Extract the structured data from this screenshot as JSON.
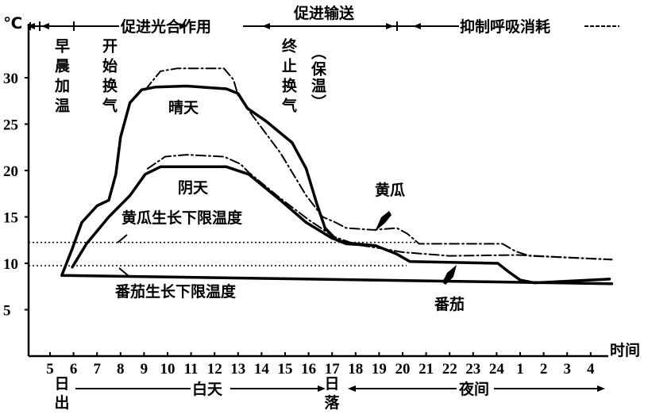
{
  "chart_data": {
    "type": "line",
    "yunit": "℃",
    "xlabel": "时间",
    "yticks": [
      5,
      10,
      15,
      20,
      25,
      30
    ],
    "ylim": [
      0,
      33
    ],
    "xticks": [
      "5",
      "6",
      "7",
      "8",
      "9",
      "10",
      "11",
      "12",
      "13",
      "14",
      "15",
      "16",
      "17",
      "18",
      "19",
      "20",
      "21",
      "22",
      "23",
      "24",
      "1",
      "2",
      "3",
      "4"
    ],
    "grid": false,
    "phases_top": [
      "促进光合作用",
      "促进输送",
      "抑制呼吸消耗"
    ],
    "phases_bottom": {
      "sunrise": "日出",
      "day": "白天",
      "sunset": "日落",
      "night": "夜间"
    },
    "annotations": {
      "morning_heating": "早晨加温",
      "start_ventilation": "开始换气",
      "stop_ventilation": "终止换气",
      "keep_warm": "（保温）",
      "sunny": "晴天",
      "cloudy": "阴天",
      "cucumber": "黄瓜",
      "tomato": "番茄"
    },
    "thresholds": [
      {
        "name": "黄瓜生长下限温度",
        "value": 12
      },
      {
        "name": "番茄生长下限温度",
        "value": 10
      }
    ],
    "series": [
      {
        "key": "tomato-sunny",
        "style": "solid",
        "points": [
          [
            4.9,
            7.8
          ],
          [
            5.5,
            8.7
          ],
          [
            5.95,
            11.6
          ],
          [
            6.35,
            14.4
          ],
          [
            7.0,
            16.2
          ],
          [
            7.5,
            16.8
          ],
          [
            7.8,
            19.6
          ],
          [
            8.0,
            23.6
          ],
          [
            8.4,
            27.3
          ],
          [
            8.9,
            28.7
          ],
          [
            9.5,
            29.0
          ],
          [
            10.8,
            29.1
          ],
          [
            12.5,
            28.8
          ],
          [
            13.0,
            28.3
          ],
          [
            13.4,
            26.7
          ],
          [
            14.2,
            25.3
          ],
          [
            15.3,
            23.0
          ],
          [
            15.9,
            20.2
          ],
          [
            16.35,
            16.4
          ],
          [
            16.7,
            13.8
          ],
          [
            17.2,
            12.5
          ],
          [
            17.6,
            12.1
          ],
          [
            18.85,
            11.9
          ],
          [
            19.75,
            11.0
          ],
          [
            20.3,
            10.2
          ],
          [
            24.05,
            10.0
          ],
          [
            24.5,
            9.1
          ],
          [
            1,
            8.2
          ],
          [
            1.6,
            7.9
          ],
          [
            4.8,
            8.3
          ]
        ]
      },
      {
        "key": "tomato-cloudy",
        "style": "solid",
        "points": [
          [
            5.95,
            9.6
          ],
          [
            6.55,
            12.1
          ],
          [
            7.5,
            15.0
          ],
          [
            8.4,
            17.3
          ],
          [
            9.05,
            19.6
          ],
          [
            9.7,
            20.4
          ],
          [
            12.5,
            20.4
          ],
          [
            13.45,
            19.6
          ],
          [
            14.8,
            16.8
          ],
          [
            15.9,
            14.4
          ],
          [
            17.0,
            12.7
          ],
          [
            17.6,
            12.2
          ],
          [
            18.85,
            11.9
          ]
        ]
      },
      {
        "key": "cucumber-sunny",
        "style": "dashdot",
        "points": [
          [
            9.05,
            28.7
          ],
          [
            9.7,
            30.7
          ],
          [
            10.4,
            31.0
          ],
          [
            12.4,
            31.0
          ],
          [
            12.8,
            29.8
          ],
          [
            13.0,
            28.1
          ],
          [
            13.65,
            25.8
          ],
          [
            14.8,
            21.9
          ],
          [
            15.9,
            17.3
          ],
          [
            16.6,
            15.0
          ],
          [
            17.15,
            14.4
          ],
          [
            17.6,
            13.8
          ],
          [
            18.75,
            13.6
          ],
          [
            19.75,
            13.8
          ],
          [
            20.2,
            13.2
          ],
          [
            20.7,
            12.1
          ],
          [
            24.25,
            12.1
          ],
          [
            24.8,
            11.3
          ],
          [
            1.4,
            10.8
          ],
          [
            4.9,
            10.4
          ]
        ]
      },
      {
        "key": "cucumber-cloudy",
        "style": "dashdot",
        "points": [
          [
            9.15,
            20.2
          ],
          [
            9.9,
            21.5
          ],
          [
            10.8,
            21.7
          ],
          [
            12.4,
            21.5
          ],
          [
            13.1,
            20.7
          ],
          [
            13.45,
            19.8
          ],
          [
            14.8,
            17.0
          ],
          [
            16.0,
            14.7
          ],
          [
            17.05,
            12.9
          ],
          [
            18.05,
            12.0
          ],
          [
            19.1,
            11.6
          ],
          [
            20.0,
            11.2
          ],
          [
            22.0,
            10.8
          ],
          [
            24.9,
            10.9
          ],
          [
            4.9,
            10.4
          ]
        ]
      }
    ]
  }
}
